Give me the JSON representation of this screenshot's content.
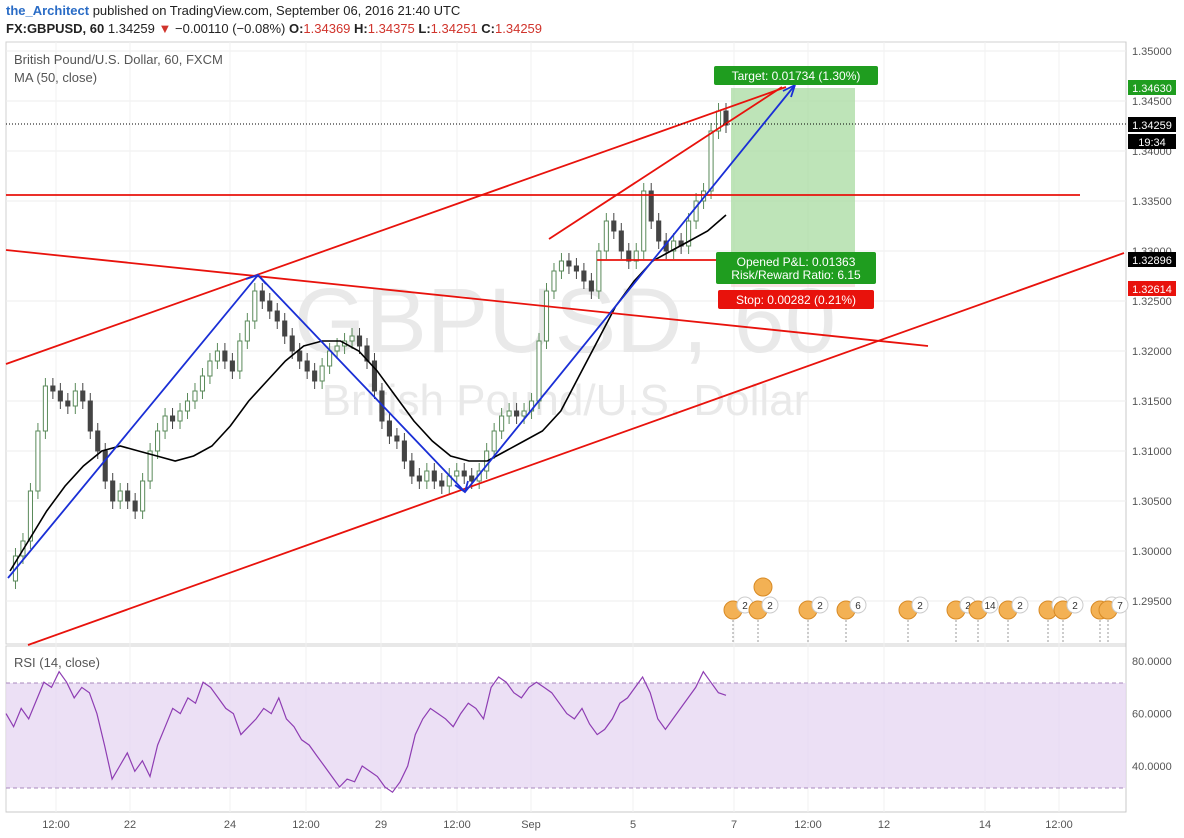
{
  "header": {
    "author": "the_Architect",
    "published_text": "published on TradingView.com, September 06, 2016 21:40 UTC",
    "symbol": "FX:GBPUSD, 60",
    "last": "1.34259",
    "change_arrow": "▼",
    "change": "−0.00110 (−0.08%)",
    "o_label": "O:",
    "o_value": "1.34369",
    "h_label": "H:",
    "h_value": "1.34375",
    "l_label": "L:",
    "l_value": "1.34251",
    "c_label": "C:",
    "c_value": "1.34259"
  },
  "legend": {
    "title": "British Pound/U.S. Dollar, 60, FXCM",
    "ma": "MA (50, close)",
    "rsi": "RSI (14, close)"
  },
  "watermark": {
    "symbol": "GBPUSD, 60",
    "name": "British Pound/U.S. Dollar"
  },
  "position_labels": {
    "target": "Target: 0.01734 (1.30%)",
    "opened": "Opened P&L: 0.01363",
    "rr": "Risk/Reward Ratio: 6.15",
    "stop": "Stop: 0.00282 (0.21%)"
  },
  "price_badges": {
    "target": "1.34630",
    "last": "1.34259",
    "countdown": "19:34",
    "entry": "1.32896",
    "stop": "1.32614"
  },
  "chart_data": {
    "type": "line",
    "symbol": "FX:GBPUSD",
    "interval": "60",
    "price_axis": {
      "ticks": [
        "1.35000",
        "1.34500",
        "1.34000",
        "1.33500",
        "1.33000",
        "1.32500",
        "1.32000",
        "1.31500",
        "1.31000",
        "1.30500",
        "1.30000",
        "1.29500"
      ],
      "ylim": [
        1.292,
        1.3504
      ]
    },
    "time_axis": {
      "ticks": [
        "12:00",
        "22",
        "24",
        "12:00",
        "29",
        "12:00",
        "Sep",
        "5",
        "7",
        "12:00",
        "12",
        "14",
        "12:00"
      ]
    },
    "rsi_axis": {
      "ticks": [
        "80.0000",
        "60.0000",
        "40.0000"
      ],
      "ylim": [
        25,
        83
      ],
      "band": [
        30,
        70
      ]
    },
    "price_series": {
      "name": "GBPUSD",
      "values": [
        1.297,
        1.2995,
        1.301,
        1.306,
        1.312,
        1.3165,
        1.316,
        1.315,
        1.3145,
        1.316,
        1.315,
        1.312,
        1.31,
        1.307,
        1.305,
        1.306,
        1.305,
        1.304,
        1.307,
        1.31,
        1.312,
        1.3135,
        1.313,
        1.314,
        1.315,
        1.316,
        1.3175,
        1.319,
        1.32,
        1.319,
        1.318,
        1.321,
        1.323,
        1.326,
        1.325,
        1.324,
        1.323,
        1.3215,
        1.32,
        1.319,
        1.318,
        1.317,
        1.3185,
        1.32,
        1.3205,
        1.321,
        1.3215,
        1.3205,
        1.319,
        1.316,
        1.313,
        1.3115,
        1.311,
        1.309,
        1.3075,
        1.307,
        1.308,
        1.307,
        1.3065,
        1.3075,
        1.308,
        1.3075,
        1.307,
        1.308,
        1.31,
        1.312,
        1.3135,
        1.314,
        1.3135,
        1.314,
        1.315,
        1.321,
        1.326,
        1.328,
        1.329,
        1.3285,
        1.328,
        1.327,
        1.326,
        1.33,
        1.333,
        1.332,
        1.33,
        1.329,
        1.33,
        1.336,
        1.333,
        1.331,
        1.33,
        1.331,
        1.3305,
        1.333,
        1.335,
        1.336,
        1.342,
        1.344,
        1.3426
      ],
      "ma50": [
        1.298,
        1.301,
        1.304,
        1.3065,
        1.3085,
        1.31,
        1.3105,
        1.31,
        1.3095,
        1.309,
        1.3095,
        1.3105,
        1.3125,
        1.315,
        1.317,
        1.319,
        1.3205,
        1.321,
        1.321,
        1.32,
        1.318,
        1.3155,
        1.313,
        1.311,
        1.3095,
        1.309,
        1.309,
        1.31,
        1.311,
        1.312,
        1.314,
        1.3175,
        1.321,
        1.3245,
        1.327,
        1.329,
        1.33,
        1.331,
        1.332,
        1.3336
      ]
    },
    "rsi_series": {
      "name": "RSI (14, close)",
      "values": [
        60,
        55,
        62,
        58,
        65,
        72,
        70,
        76,
        72,
        66,
        70,
        68,
        60,
        48,
        35,
        40,
        45,
        38,
        42,
        36,
        48,
        55,
        62,
        60,
        66,
        64,
        72,
        70,
        66,
        62,
        60,
        52,
        55,
        58,
        62,
        60,
        66,
        58,
        55,
        50,
        48,
        44,
        40,
        36,
        32,
        35,
        34,
        40,
        38,
        36,
        32,
        30,
        34,
        40,
        52,
        58,
        62,
        60,
        58,
        55,
        60,
        64,
        62,
        58,
        70,
        74,
        72,
        68,
        66,
        70,
        72,
        70,
        68,
        64,
        60,
        58,
        62,
        56,
        52,
        54,
        58,
        64,
        66,
        70,
        74,
        68,
        58,
        54,
        58,
        62,
        66,
        70,
        76,
        72,
        68,
        67
      ]
    },
    "annotations": {
      "target": "Target: 0.01734 (1.30%)",
      "opened": "Opened P&L: 0.01363",
      "risk_reward": "Risk/Reward Ratio: 6.15",
      "stop": "Stop: 0.00282 (0.21%)",
      "target_price": 1.3463,
      "entry_price": 1.32896,
      "stop_price": 1.32614,
      "last_price": 1.34259,
      "horizontal_level": 1.3355
    },
    "event_markers": [
      "2",
      "2",
      "2",
      "6",
      "2",
      "2",
      "14",
      "2",
      "6",
      "2",
      "4",
      "7"
    ],
    "colors": {
      "up": "#5a8a5a",
      "down": "#444444",
      "trendline": "#e8120c",
      "swing": "#1a2fd6",
      "ma": "#000000",
      "rsi": "#8e3db3",
      "rsi_band": "#e7d8f2",
      "target_zone": "#a8dba0",
      "target_badge": "#1f9d1f",
      "stop_badge": "#e8120c",
      "last_badge": "#000000"
    },
    "grid": true
  }
}
